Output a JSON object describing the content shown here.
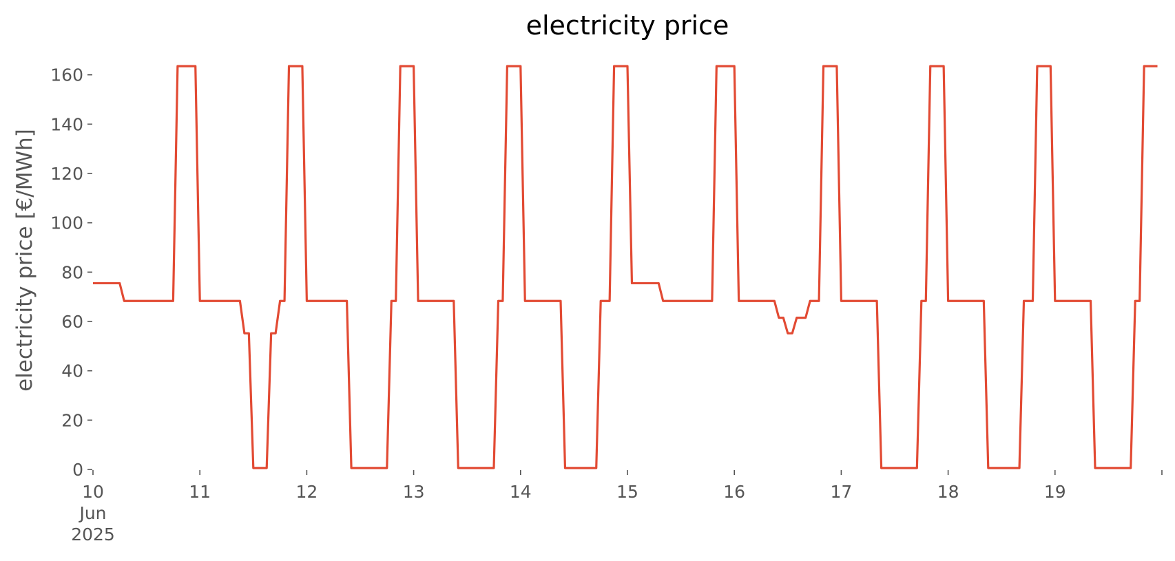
{
  "chart_data": {
    "type": "line",
    "title": "electricity price",
    "xlabel": "",
    "ylabel": "electricity price [€/MWh]",
    "grid": false,
    "legend": "none",
    "x_unit": "hours since 2025-06-10 00:00",
    "xlim": [
      0,
      239
    ],
    "ylim": [
      0,
      168
    ],
    "yticks": [
      0,
      20,
      40,
      60,
      80,
      100,
      120,
      140,
      160
    ],
    "xticks": [
      {
        "value": 0,
        "label": "10",
        "sublabels": [
          "Jun",
          "2025"
        ]
      },
      {
        "value": 24,
        "label": "11"
      },
      {
        "value": 48,
        "label": "12"
      },
      {
        "value": 72,
        "label": "13"
      },
      {
        "value": 96,
        "label": "14"
      },
      {
        "value": 120,
        "label": "15"
      },
      {
        "value": 144,
        "label": "16"
      },
      {
        "value": 168,
        "label": "17"
      },
      {
        "value": 192,
        "label": "18"
      },
      {
        "value": 216,
        "label": "19"
      },
      {
        "value": 240,
        "label": ""
      }
    ],
    "series": [
      {
        "name": "electricity price",
        "color": "#E24A33",
        "points": [
          [
            0,
            75.5
          ],
          [
            6,
            75.5
          ],
          [
            7,
            68.3
          ],
          [
            18,
            68.3
          ],
          [
            19,
            163.5
          ],
          [
            23,
            163.5
          ],
          [
            24,
            68.3
          ],
          [
            33,
            68.3
          ],
          [
            34,
            55.2
          ],
          [
            35,
            55.2
          ],
          [
            36,
            0.6
          ],
          [
            39,
            0.6
          ],
          [
            40,
            55.2
          ],
          [
            41,
            55.2
          ],
          [
            42,
            68.3
          ],
          [
            43,
            68.3
          ],
          [
            44,
            163.5
          ],
          [
            47,
            163.5
          ],
          [
            48,
            68.3
          ],
          [
            57,
            68.3
          ],
          [
            58,
            0.6
          ],
          [
            66,
            0.6
          ],
          [
            67,
            68.3
          ],
          [
            68,
            68.3
          ],
          [
            69,
            163.5
          ],
          [
            72,
            163.5
          ],
          [
            73,
            68.3
          ],
          [
            81,
            68.3
          ],
          [
            82,
            0.6
          ],
          [
            90,
            0.6
          ],
          [
            91,
            68.3
          ],
          [
            92,
            68.3
          ],
          [
            93,
            163.5
          ],
          [
            96,
            163.5
          ],
          [
            97,
            68.3
          ],
          [
            105,
            68.3
          ],
          [
            106,
            0.6
          ],
          [
            113,
            0.6
          ],
          [
            114,
            68.3
          ],
          [
            116,
            68.3
          ],
          [
            117,
            163.5
          ],
          [
            120,
            163.5
          ],
          [
            121,
            75.5
          ],
          [
            127,
            75.5
          ],
          [
            128,
            68.3
          ],
          [
            139,
            68.3
          ],
          [
            140,
            163.5
          ],
          [
            144,
            163.5
          ],
          [
            145,
            68.3
          ],
          [
            153,
            68.3
          ],
          [
            154,
            61.5
          ],
          [
            155,
            61.5
          ],
          [
            156,
            55.2
          ],
          [
            157,
            55.2
          ],
          [
            158,
            61.5
          ],
          [
            160,
            61.5
          ],
          [
            161,
            68.3
          ],
          [
            163,
            68.3
          ],
          [
            164,
            163.5
          ],
          [
            167,
            163.5
          ],
          [
            168,
            68.3
          ],
          [
            176,
            68.3
          ],
          [
            177,
            0.6
          ],
          [
            185,
            0.6
          ],
          [
            186,
            68.3
          ],
          [
            187,
            68.3
          ],
          [
            188,
            163.5
          ],
          [
            191,
            163.5
          ],
          [
            192,
            68.3
          ],
          [
            200,
            68.3
          ],
          [
            201,
            0.6
          ],
          [
            208,
            0.6
          ],
          [
            209,
            68.3
          ],
          [
            211,
            68.3
          ],
          [
            212,
            163.5
          ],
          [
            215,
            163.5
          ],
          [
            216,
            68.3
          ],
          [
            224,
            68.3
          ],
          [
            225,
            0.6
          ],
          [
            233,
            0.6
          ],
          [
            234,
            68.3
          ],
          [
            235,
            68.3
          ],
          [
            236,
            163.5
          ],
          [
            239,
            163.5
          ]
        ]
      }
    ]
  }
}
